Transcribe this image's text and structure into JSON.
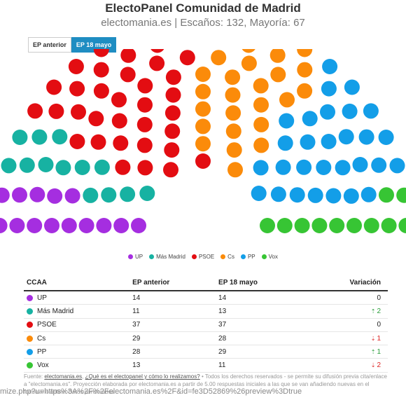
{
  "title": "ElectoPanel Comunidad de Madrid",
  "subtitle": "electomania.es | Escaños: 132, Mayoría: 67",
  "tabs": [
    {
      "label": "EP anterior",
      "active": false
    },
    {
      "label": "EP 18 mayo",
      "active": true
    }
  ],
  "chart_data": {
    "type": "hemicycle",
    "total_seats": 132,
    "majority": 67,
    "parties": [
      {
        "name": "UP",
        "seats": 14,
        "color": "#a52ee0"
      },
      {
        "name": "Más Madrid",
        "seats": 13,
        "color": "#17b2a2"
      },
      {
        "name": "PSOE",
        "seats": 37,
        "color": "#e30d12"
      },
      {
        "name": "Cs",
        "seats": 28,
        "color": "#fb8b0a"
      },
      {
        "name": "PP",
        "seats": 29,
        "color": "#139ee8"
      },
      {
        "name": "Vox",
        "seats": 11,
        "color": "#37c534"
      }
    ]
  },
  "table": {
    "headers": [
      "CCAA",
      "EP anterior",
      "EP 18 mayo",
      "Variación"
    ],
    "rows": [
      {
        "party": "UP",
        "color": "#a52ee0",
        "previous": "14",
        "current": "14",
        "variation": "0",
        "dir": "none"
      },
      {
        "party": "Más Madrid",
        "color": "#17b2a2",
        "previous": "11",
        "current": "13",
        "variation": "2",
        "dir": "up"
      },
      {
        "party": "PSOE",
        "color": "#e30d12",
        "previous": "37",
        "current": "37",
        "variation": "0",
        "dir": "none"
      },
      {
        "party": "Cs",
        "color": "#fb8b0a",
        "previous": "29",
        "current": "28",
        "variation": "1",
        "dir": "down"
      },
      {
        "party": "PP",
        "color": "#139ee8",
        "previous": "28",
        "current": "29",
        "variation": "1",
        "dir": "up"
      },
      {
        "party": "Vox",
        "color": "#37c534",
        "previous": "13",
        "current": "11",
        "variation": "2",
        "dir": "down"
      }
    ]
  },
  "footer": {
    "prefix": "Fuente: ",
    "link1": "electomania.es",
    "sep": ", ",
    "link2": "¿Qué es el electopanel y cómo lo realizamos?",
    "text": " • Todos los derechos reservados - se permite su difusión previa cita/enlace a \"electomania.es\". Proyección elaborada por electomania.es a partir de 5.00 respuestas iniciales a las que se van añadiendo nuevas en el formulario online. Datos ponderados"
  },
  "overlay_text": "mize.php?u=https%3A%2F%2Felectomania.es%2F&id=fe3D52869%26preview%3Dtrue"
}
